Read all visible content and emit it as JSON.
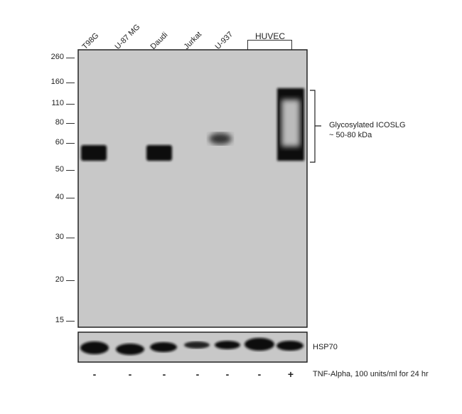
{
  "lanes": [
    "T98G",
    "U-87 MG",
    "Daudi",
    "Jurkat",
    "U-937"
  ],
  "group_label": "HUVEC",
  "mw_markers": [
    "260",
    "160",
    "110",
    "80",
    "60",
    "50",
    "40",
    "30",
    "20",
    "15"
  ],
  "annotation": {
    "line1": "Glycosylated ICOSLG",
    "line2": "~ 50-80 kDa"
  },
  "loading_control": "HSP70",
  "treatment": {
    "signs": [
      "-",
      "-",
      "-",
      "-",
      "-",
      "-",
      "+"
    ],
    "label": "TNF-Alpha, 100 units/ml for 24 hr"
  },
  "colors": {
    "membrane": "#c8c8c8",
    "band": "#111111"
  }
}
